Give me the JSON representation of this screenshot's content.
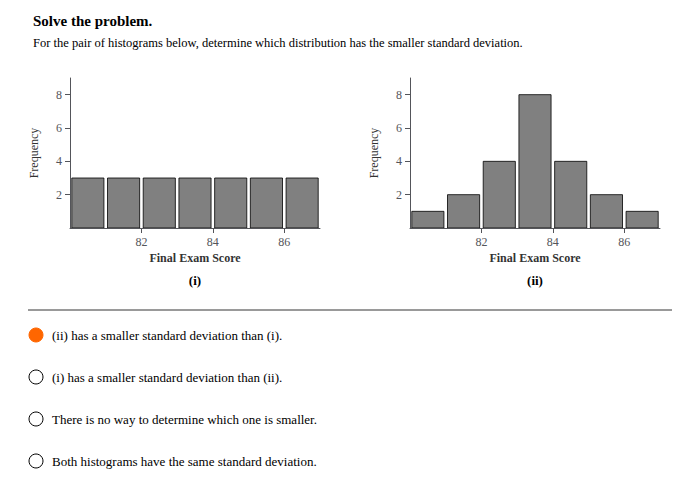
{
  "title": "Solve the problem.",
  "subtitle": "For the pair of histograms below, determine which distribution has the smaller standard deviation.",
  "chart_data": [
    {
      "type": "histogram",
      "label": "(i)",
      "bins": [
        80,
        81,
        82,
        83,
        84,
        85,
        86,
        87
      ],
      "counts": [
        3,
        3,
        3,
        3,
        3,
        3,
        3
      ],
      "xlabel": "Final Exam Score",
      "ylabel": "Frequency",
      "xlim": [
        80,
        87
      ],
      "xticks": [
        82,
        84,
        86
      ],
      "ylim": [
        0,
        9
      ],
      "yticks": [
        2,
        4,
        6,
        8
      ],
      "color": "#808080"
    },
    {
      "type": "histogram",
      "label": "(ii)",
      "bins": [
        80,
        81,
        82,
        83,
        84,
        85,
        86,
        87
      ],
      "counts": [
        1,
        2,
        4,
        8,
        4,
        2,
        1
      ],
      "xlabel": "Final Exam Score",
      "ylabel": "Frequency",
      "xlim": [
        80,
        87
      ],
      "xticks": [
        82,
        84,
        86
      ],
      "ylim": [
        0,
        9
      ],
      "yticks": [
        2,
        4,
        6,
        8
      ],
      "color": "#808080"
    }
  ],
  "annotations": [
    {
      "text": "(ii) has a smaller standard deviation than (i).",
      "marker": "filled",
      "color": "#ff6600"
    },
    {
      "text": "(i) has a smaller standard deviation than (ii).",
      "marker": "open"
    },
    {
      "text": "There is no way to determine which one is smaller.",
      "marker": "open"
    },
    {
      "text": "Both histograms have the same standard deviation.",
      "marker": "open"
    }
  ]
}
